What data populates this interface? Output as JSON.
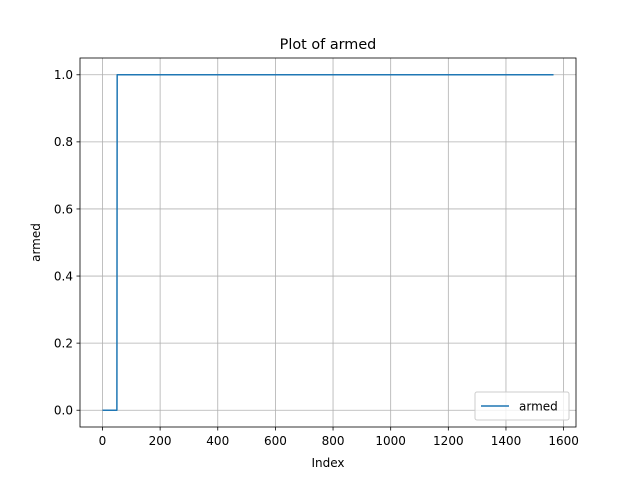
{
  "chart_data": {
    "type": "line",
    "title": "Plot of armed",
    "xlabel": "Index",
    "ylabel": "armed",
    "xlim": [
      -78,
      1643
    ],
    "ylim": [
      -0.05,
      1.05
    ],
    "x_ticks": [
      0,
      200,
      400,
      600,
      800,
      1000,
      1200,
      1400,
      1600
    ],
    "y_ticks": [
      0.0,
      0.2,
      0.4,
      0.6,
      0.8,
      1.0
    ],
    "x_tick_labels": [
      "0",
      "200",
      "400",
      "600",
      "800",
      "1000",
      "1200",
      "1400",
      "1600"
    ],
    "y_tick_labels": [
      "0.0",
      "0.2",
      "0.4",
      "0.6",
      "0.8",
      "1.0"
    ],
    "grid": true,
    "legend_position": "lower-right",
    "series": [
      {
        "name": "armed",
        "color": "#1f77b4",
        "points": [
          [
            0,
            0
          ],
          [
            50,
            0
          ],
          [
            51,
            1
          ],
          [
            1565,
            1
          ]
        ]
      }
    ]
  }
}
